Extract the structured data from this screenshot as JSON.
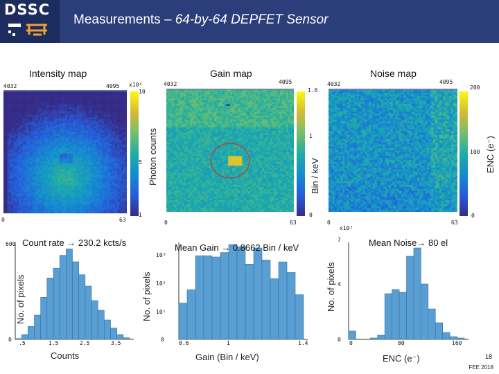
{
  "header": {
    "logo": "DSSC",
    "title_prefix": "Measurements – ",
    "title_italic": "64-by-64 DEPFET Sensor"
  },
  "maps": [
    {
      "title": "Intensity map",
      "corner_left": "4032",
      "corner_right": "4095",
      "x_start": "0",
      "x_end": "63",
      "cbar_top": "10",
      "cbar_mid": "5",
      "cbar_bottom": "1",
      "cbar_exp": "x10⁴",
      "cbar_label": "Photon counts"
    },
    {
      "title": "Gain map",
      "corner_left": "4032",
      "corner_right": "4095",
      "x_start": "0",
      "x_end": "63",
      "cbar_top": "1.6",
      "cbar_mid": "1",
      "cbar_bottom": "0",
      "cbar_label": "Bin / keV"
    },
    {
      "title": "Noise map",
      "corner_left": "4032",
      "corner_right": "4095",
      "x_start": "0",
      "x_end": "63",
      "cbar_top": "200",
      "cbar_mid": "100",
      "cbar_bottom": "0",
      "cbar_label": "ENC (e⁻)"
    }
  ],
  "histograms": [
    {
      "annotation": "Count rate → 230.2 kcts/s",
      "ylabel": "No. of pixels",
      "xlabel": "Counts",
      "y_top": "600",
      "y_bottom": "0",
      "x_ticks": [
        ".5",
        "1.5",
        "2.5",
        "3.5"
      ]
    },
    {
      "annotation": "Mean Gain → 0.8662 Bin / keV",
      "ylabel": "No. of pixels",
      "xlabel": "Gain (Bin / keV)",
      "y_ticks": [
        "10³",
        "10²",
        "10¹",
        "0"
      ],
      "x_ticks": [
        "0.6",
        "1",
        "1.4"
      ]
    },
    {
      "annotation": "Mean Noise→ 80 el",
      "ylabel": "No. of pixels",
      "xlabel": "ENC (e⁻)",
      "y_exp": "x10²",
      "y_ticks": [
        "7",
        "4",
        "0"
      ],
      "x_ticks": [
        "0",
        "80",
        "160"
      ]
    }
  ],
  "chart_data": [
    {
      "type": "bar",
      "title": "Count rate → 230.2 kcts/s",
      "xlabel": "Counts",
      "ylabel": "No. of pixels",
      "ylim": [
        0,
        600
      ],
      "series": [
        {
          "name": "Intensity",
          "values": [
            5,
            30,
            80,
            150,
            260,
            380,
            440,
            520,
            560,
            480,
            400,
            330,
            240,
            180,
            120,
            70,
            30,
            10
          ]
        }
      ]
    },
    {
      "type": "bar",
      "title": "Mean Gain → 0.8662 Bin / keV",
      "xlabel": "Gain (Bin / keV)",
      "ylabel": "No. of pixels",
      "yscale": "log",
      "series": [
        {
          "name": "Gain",
          "values": [
            20,
            60,
            1000,
            1000,
            900,
            1300,
            2500,
            2100,
            500,
            1900,
            700,
            150,
            600,
            250,
            40
          ]
        }
      ]
    },
    {
      "type": "bar",
      "title": "Mean Noise→ 80 el",
      "xlabel": "ENC (e⁻)",
      "ylabel": "No. of pixels (x10²)",
      "ylim": [
        0,
        7
      ],
      "series": [
        {
          "name": "Noise",
          "values": [
            0.6,
            0,
            0,
            0.1,
            0.3,
            3.3,
            3.6,
            3.4,
            6.0,
            6.6,
            4.0,
            2.2,
            1.2,
            0.5,
            0.2,
            0.1
          ]
        }
      ]
    }
  ],
  "footer": {
    "page": "18",
    "event": "FEE 2018"
  }
}
